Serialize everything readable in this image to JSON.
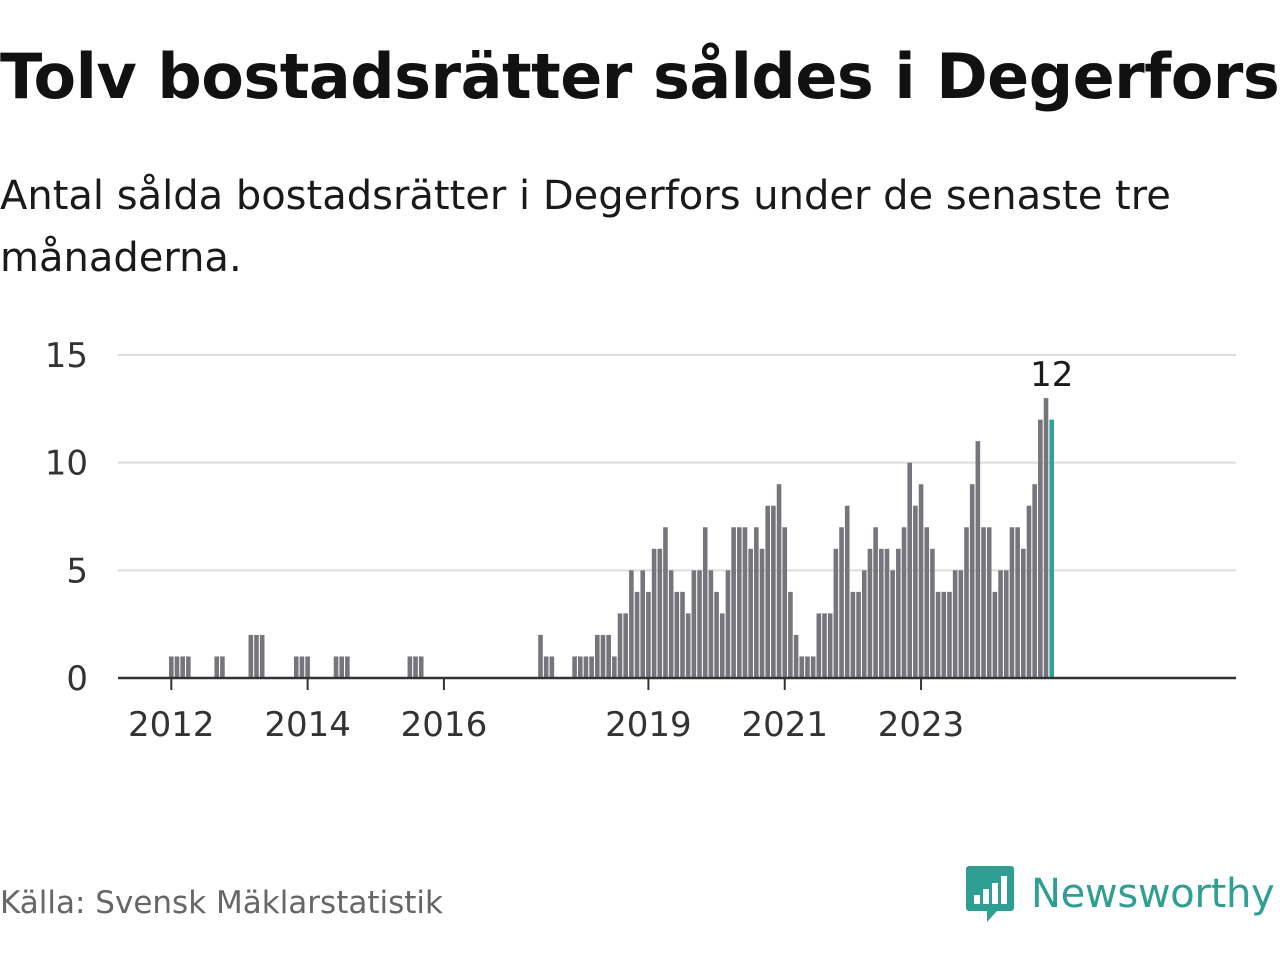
{
  "header": {
    "title": "Tolv bostadsrätter såldes i Degerfors",
    "subtitle": "Antal sålda bostadsrätter i Degerfors under de senaste tre månaderna."
  },
  "footer": {
    "source": "Källa: Svensk Mäklarstatistik",
    "brand": "Newsworthy",
    "brand_icon": "bar-chart-speech-bubble-icon"
  },
  "colors": {
    "bar": "#76757c",
    "highlight": "#2ba39a",
    "grid": "#dddddd",
    "axis": "#333333",
    "brand": "#2f9e93"
  },
  "chart_data": {
    "type": "bar",
    "x_start": "2012-01",
    "frequency": "monthly",
    "values": [
      1,
      1,
      1,
      1,
      0,
      0,
      0,
      0,
      1,
      1,
      0,
      0,
      0,
      0,
      2,
      2,
      2,
      0,
      0,
      0,
      0,
      0,
      1,
      1,
      1,
      0,
      0,
      0,
      0,
      1,
      1,
      1,
      0,
      0,
      0,
      0,
      0,
      0,
      0,
      0,
      0,
      0,
      1,
      1,
      1,
      0,
      0,
      0,
      0,
      0,
      0,
      0,
      0,
      0,
      0,
      0,
      0,
      0,
      0,
      0,
      0,
      0,
      0,
      0,
      0,
      2,
      1,
      1,
      0,
      0,
      0,
      1,
      1,
      1,
      1,
      2,
      2,
      2,
      1,
      3,
      3,
      5,
      4,
      5,
      4,
      6,
      6,
      7,
      5,
      4,
      4,
      3,
      5,
      5,
      7,
      5,
      4,
      3,
      5,
      7,
      7,
      7,
      6,
      7,
      6,
      8,
      8,
      9,
      7,
      4,
      2,
      1,
      1,
      1,
      3,
      3,
      3,
      6,
      7,
      8,
      4,
      4,
      5,
      6,
      7,
      6,
      6,
      5,
      6,
      7,
      10,
      8,
      9,
      7,
      6,
      4,
      4,
      4,
      5,
      5,
      7,
      9,
      11,
      7,
      7,
      4,
      5,
      5,
      7,
      7,
      6,
      8,
      9,
      12,
      13,
      12
    ],
    "highlight_last": true,
    "highlight_label": "12",
    "y_ticks": [
      0,
      5,
      10,
      15
    ],
    "ylim": [
      0,
      15
    ],
    "x_ticks": [
      "2012",
      "2014",
      "2016",
      "2019",
      "2021",
      "2023"
    ],
    "grid": true
  }
}
